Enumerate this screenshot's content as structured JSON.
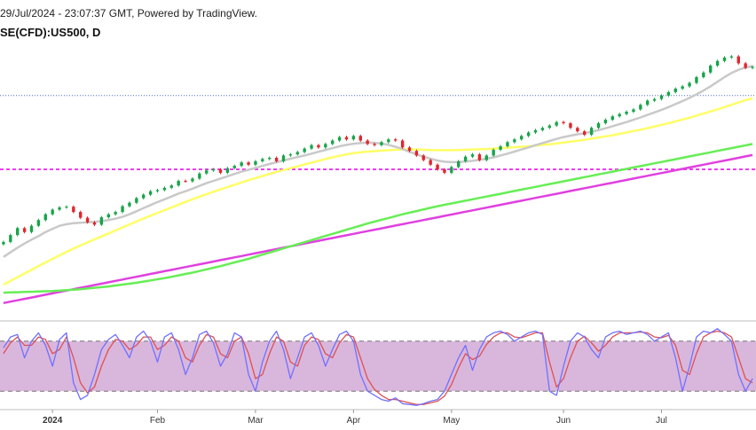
{
  "header": {
    "timestamp_line": "29/Jul/2024 - 23:07:37 GMT, Powered by TradingView.",
    "symbol_line": "SE(CFD):US500, D"
  },
  "colors": {
    "candle_up": "#19a34a",
    "candle_down": "#e0262c",
    "ma_short": "#c9c9c9",
    "ma_mid": "#ffff66",
    "ma_long": "#66ee55",
    "ma_longest": "#e040e0",
    "resistance_line": "#4f6fd0",
    "support_line": "#f03cf0",
    "osc_band": "#d9b7dc",
    "osc_k": "#7070ff",
    "osc_d": "#e05050"
  },
  "chart_data": {
    "type": "line",
    "price_panel": {
      "candles_close": [
        4785,
        4815,
        4845,
        4828,
        4855,
        4880,
        4905,
        4925,
        4935,
        4938,
        4915,
        4890,
        4870,
        4860,
        4892,
        4905,
        4915,
        4940,
        4955,
        4975,
        4990,
        5005,
        5010,
        5020,
        5030,
        5050,
        5048,
        5060,
        5082,
        5095,
        5100,
        5085,
        5105,
        5115,
        5130,
        5120,
        5135,
        5145,
        5150,
        5135,
        5160,
        5165,
        5175,
        5190,
        5205,
        5195,
        5210,
        5225,
        5240,
        5230,
        5245,
        5225,
        5210,
        5205,
        5218,
        5230,
        5225,
        5195,
        5180,
        5160,
        5140,
        5120,
        5100,
        5085,
        5110,
        5135,
        5155,
        5165,
        5140,
        5160,
        5185,
        5200,
        5218,
        5230,
        5245,
        5260,
        5270,
        5280,
        5290,
        5305,
        5300,
        5280,
        5265,
        5250,
        5280,
        5300,
        5315,
        5330,
        5340,
        5350,
        5360,
        5380,
        5398,
        5405,
        5420,
        5435,
        5450,
        5460,
        5475,
        5500,
        5520,
        5550,
        5570,
        5585,
        5590,
        5560,
        5540,
        5545
      ],
      "ma_short": [
        4720,
        4740,
        4760,
        4778,
        4795,
        4810,
        4828,
        4842,
        4855,
        4862,
        4866,
        4868,
        4870,
        4872,
        4875,
        4880,
        4886,
        4894,
        4905,
        4918,
        4932,
        4945,
        4958,
        4970,
        4982,
        4995,
        5005,
        5016,
        5028,
        5040,
        5050,
        5060,
        5070,
        5080,
        5090,
        5098,
        5106,
        5115,
        5123,
        5131,
        5138,
        5146,
        5153,
        5160,
        5168,
        5176,
        5184,
        5192,
        5200,
        5206,
        5211,
        5214,
        5216,
        5215,
        5212,
        5206,
        5198,
        5188,
        5176,
        5165,
        5155,
        5146,
        5138,
        5133,
        5131,
        5132,
        5134,
        5137,
        5141,
        5146,
        5152,
        5160,
        5168,
        5177,
        5186,
        5195,
        5205,
        5214,
        5223,
        5232,
        5240,
        5246,
        5252,
        5257,
        5263,
        5270,
        5278,
        5287,
        5296,
        5305,
        5315,
        5325,
        5336,
        5347,
        5358,
        5370,
        5383,
        5396,
        5410,
        5425,
        5442,
        5460,
        5480,
        5500,
        5518,
        5532,
        5542,
        5548
      ],
      "ma_mid": [
        4600,
        4616,
        4632,
        4648,
        4664,
        4680,
        4696,
        4712,
        4727,
        4742,
        4756,
        4770,
        4783,
        4796,
        4809,
        4822,
        4835,
        4848,
        4861,
        4874,
        4887,
        4899,
        4911,
        4923,
        4935,
        4947,
        4959,
        4970,
        4981,
        4992,
        5003,
        5013,
        5023,
        5033,
        5043,
        5053,
        5062,
        5071,
        5080,
        5089,
        5097,
        5105,
        5113,
        5121,
        5129,
        5137,
        5145,
        5152,
        5159,
        5165,
        5170,
        5174,
        5177,
        5179,
        5181,
        5183,
        5185,
        5186,
        5186,
        5186,
        5185,
        5184,
        5183,
        5183,
        5183,
        5184,
        5185,
        5186,
        5187,
        5188,
        5190,
        5192,
        5194,
        5196,
        5198,
        5200,
        5203,
        5206,
        5209,
        5212,
        5216,
        5220,
        5224,
        5228,
        5233,
        5238,
        5243,
        5248,
        5254,
        5260,
        5266,
        5272,
        5279,
        5286,
        5293,
        5300,
        5308,
        5316,
        5324,
        5333,
        5342,
        5351,
        5360,
        5370,
        5380,
        5390,
        5400,
        5408
      ],
      "ma_long": [
        4565,
        4566,
        4567,
        4568,
        4569,
        4570,
        4571,
        4572,
        4574,
        4576,
        4578,
        4580,
        4583,
        4586,
        4589,
        4592,
        4596,
        4600,
        4604,
        4608,
        4613,
        4618,
        4623,
        4628,
        4634,
        4640,
        4646,
        4652,
        4659,
        4666,
        4673,
        4680,
        4688,
        4696,
        4704,
        4712,
        4721,
        4730,
        4739,
        4748,
        4757,
        4766,
        4775,
        4784,
        4793,
        4802,
        4811,
        4820,
        4829,
        4838,
        4847,
        4856,
        4865,
        4873,
        4881,
        4889,
        4897,
        4905,
        4912,
        4919,
        4926,
        4933,
        4940,
        4946,
        4952,
        4958,
        4964,
        4970,
        4976,
        4982,
        4988,
        4994,
        5000,
        5006,
        5012,
        5018,
        5024,
        5030,
        5036,
        5042,
        5048,
        5054,
        5060,
        5066,
        5072,
        5078,
        5084,
        5090,
        5096,
        5102,
        5108,
        5114,
        5120,
        5126,
        5132,
        5138,
        5144,
        5150,
        5156,
        5162,
        5168,
        5174,
        5180,
        5186,
        5192,
        5198,
        5204,
        5210
      ],
      "ma_longest": [
        4520,
        4526,
        4532,
        4538,
        4544,
        4550,
        4556,
        4562,
        4568,
        4574,
        4580,
        4586,
        4592,
        4598,
        4604,
        4610,
        4616,
        4622,
        4628,
        4634,
        4640,
        4646,
        4652,
        4658,
        4664,
        4670,
        4676,
        4682,
        4688,
        4694,
        4700,
        4706,
        4712,
        4718,
        4724,
        4730,
        4736,
        4742,
        4748,
        4754,
        4760,
        4766,
        4772,
        4778,
        4784,
        4790,
        4796,
        4802,
        4808,
        4814,
        4820,
        4826,
        4832,
        4838,
        4844,
        4850,
        4856,
        4862,
        4868,
        4874,
        4880,
        4886,
        4892,
        4898,
        4904,
        4910,
        4916,
        4922,
        4928,
        4934,
        4940,
        4946,
        4952,
        4958,
        4964,
        4970,
        4976,
        4982,
        4988,
        4994,
        5000,
        5006,
        5012,
        5018,
        5024,
        5030,
        5036,
        5042,
        5048,
        5054,
        5060,
        5066,
        5072,
        5078,
        5084,
        5090,
        5096,
        5102,
        5108,
        5114,
        5120,
        5126,
        5132,
        5138,
        5144,
        5150,
        5156,
        5162
      ],
      "resistance_level": 5420,
      "support_level": 5100,
      "ylim": [
        4450,
        5650
      ]
    },
    "oscillator_panel": {
      "k": [
        72,
        85,
        88,
        60,
        80,
        90,
        75,
        50,
        82,
        90,
        30,
        10,
        15,
        40,
        70,
        82,
        88,
        75,
        60,
        85,
        92,
        80,
        55,
        85,
        90,
        70,
        40,
        60,
        88,
        92,
        78,
        50,
        65,
        90,
        85,
        40,
        20,
        55,
        80,
        92,
        70,
        35,
        60,
        85,
        90,
        75,
        50,
        70,
        88,
        92,
        80,
        40,
        20,
        15,
        10,
        8,
        12,
        5,
        4,
        3,
        5,
        8,
        10,
        20,
        40,
        60,
        75,
        45,
        70,
        85,
        90,
        92,
        88,
        80,
        85,
        90,
        92,
        88,
        20,
        15,
        50,
        80,
        90,
        85,
        70,
        60,
        85,
        90,
        92,
        88,
        90,
        92,
        88,
        80,
        85,
        90,
        60,
        20,
        50,
        85,
        92,
        90,
        95,
        88,
        80,
        40,
        20,
        35
      ],
      "d": [
        65,
        78,
        85,
        75,
        75,
        85,
        82,
        65,
        70,
        85,
        60,
        30,
        18,
        25,
        50,
        70,
        82,
        80,
        70,
        75,
        85,
        85,
        70,
        75,
        85,
        80,
        60,
        55,
        75,
        88,
        85,
        65,
        60,
        80,
        85,
        65,
        35,
        40,
        65,
        85,
        80,
        55,
        50,
        75,
        85,
        82,
        65,
        60,
        78,
        88,
        85,
        60,
        35,
        22,
        15,
        10,
        10,
        8,
        6,
        4,
        4,
        6,
        8,
        14,
        28,
        48,
        65,
        58,
        62,
        76,
        85,
        90,
        90,
        85,
        84,
        87,
        90,
        90,
        55,
        25,
        35,
        60,
        80,
        86,
        78,
        68,
        75,
        85,
        90,
        90,
        90,
        91,
        90,
        85,
        84,
        87,
        75,
        45,
        40,
        65,
        85,
        90,
        92,
        90,
        85,
        60,
        35,
        30
      ],
      "upper_level": 80,
      "lower_level": 20,
      "ylim": [
        0,
        100
      ]
    },
    "x_axis": {
      "tick_labels": [
        "2024",
        "Feb",
        "Mar",
        "Apr",
        "May",
        "Jun",
        "Jul"
      ],
      "tick_index": [
        7,
        22,
        36,
        50,
        64,
        80,
        94
      ]
    }
  }
}
